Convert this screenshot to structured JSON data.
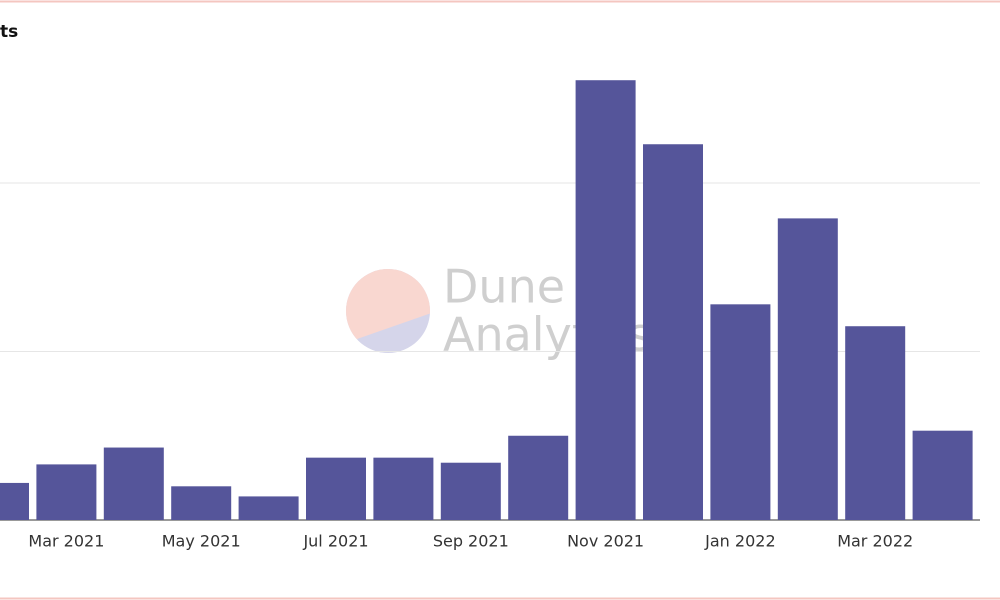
{
  "chart_data": {
    "type": "bar",
    "title": "ts",
    "categories": [
      null,
      "Mar 2021",
      null,
      "May 2021",
      null,
      "Jul 2021",
      null,
      "Sep 2021",
      null,
      "Nov 2021",
      null,
      "Jan 2022",
      null,
      "Mar 2022",
      null
    ],
    "values": [
      22,
      33,
      43,
      20,
      14,
      37,
      37,
      34,
      50,
      261,
      223,
      128,
      179,
      115,
      53
    ],
    "color": "#55559a",
    "ylim": [
      0,
      300
    ],
    "yticks": [
      0,
      100,
      200
    ],
    "grid": true,
    "watermark": {
      "line1": "Dune",
      "line2": "Analytics"
    }
  }
}
